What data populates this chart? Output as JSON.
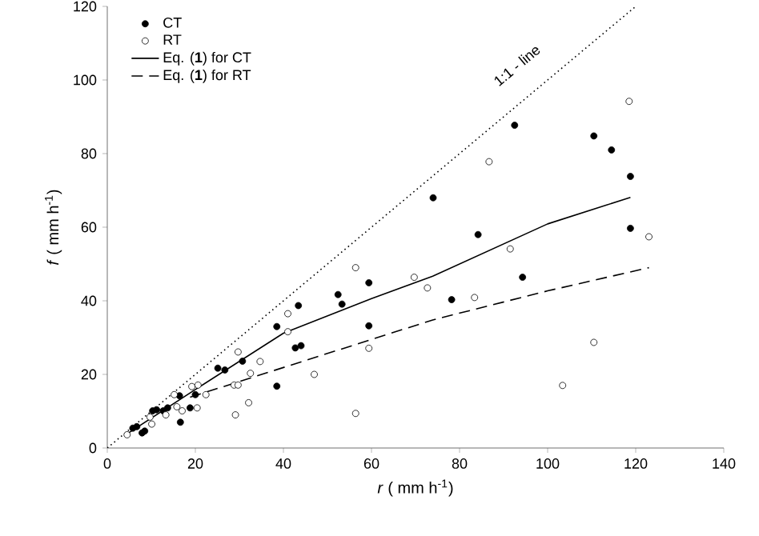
{
  "chart_data": {
    "type": "scatter",
    "xlabel": "*r* ( mm h$^{-1}$)",
    "ylabel": "*f* ( mm h$^{-1}$)",
    "xlim": [
      0,
      140
    ],
    "xticks": [
      0,
      20,
      40,
      60,
      80,
      100,
      120,
      140
    ],
    "ylim": [
      0,
      120
    ],
    "yticks": [
      0,
      20,
      40,
      60,
      80,
      100,
      120
    ],
    "grid": false,
    "legend": "top left",
    "annotations": [
      {
        "text": "1:1 - line",
        "x": 93,
        "y": 104
      }
    ],
    "series": [
      {
        "name": "CT",
        "type": "scatter",
        "marker": "circle",
        "color": "#000000",
        "x": [
          7.9,
          8.5,
          6.7,
          5.8,
          10.3,
          11.2,
          12.7,
          13.7,
          16.4,
          16.6,
          18.8,
          20,
          25.1,
          26.7,
          30.7,
          38.5,
          38.5,
          43.4,
          42.7,
          44,
          52.4,
          53.3,
          59.4,
          59.4,
          74,
          92.5,
          84.2,
          94.3,
          78.2,
          110.5,
          114.5,
          118.8,
          118.8
        ],
        "values": [
          4.1,
          4.6,
          5.8,
          5.4,
          10.1,
          10.4,
          10.1,
          10.9,
          14.2,
          7.0,
          10.9,
          14.5,
          21.7,
          21.2,
          23.6,
          33,
          16.8,
          38.7,
          27.2,
          27.8,
          41.7,
          39.1,
          44.9,
          33.2,
          68,
          87.7,
          58.0,
          46.4,
          40.3,
          84.8,
          81.0,
          73.8,
          59.7
        ]
      },
      {
        "name": "RT",
        "type": "scatter",
        "marker": "circle",
        "color": "#ffffff",
        "x": [
          4.5,
          9.7,
          10.1,
          13.3,
          15.2,
          15.8,
          17,
          19.2,
          20.6,
          20.4,
          22.4,
          28.8,
          29.7,
          29.1,
          29.7,
          32.5,
          32.1,
          34.7,
          41,
          41,
          47,
          56.4,
          56.4,
          59.4,
          69.7,
          72.7,
          83.4,
          86.7,
          91.5,
          103.4,
          110.5,
          118.5,
          123
        ],
        "values": [
          3.6,
          8.4,
          6.5,
          9.0,
          14.5,
          11.2,
          10.1,
          16.7,
          17.1,
          10.9,
          14.5,
          17.1,
          17.1,
          9.0,
          26.1,
          20.3,
          12.3,
          23.5,
          36.5,
          31.6,
          20,
          49,
          9.4,
          27.1,
          46.4,
          43.5,
          40.9,
          77.8,
          54.1,
          17.0,
          28.7,
          94.2,
          57.4
        ]
      },
      {
        "name": "Eq. (**1**) for CT",
        "type": "line",
        "marker": "none",
        "line_style": "solid",
        "color": "#000000",
        "x": [
          4.2,
          20,
          40,
          60,
          73.9,
          100,
          118.8
        ],
        "values": [
          3.6,
          15.9,
          31.2,
          40.6,
          46.7,
          60.9,
          68.1
        ]
      },
      {
        "name": "Eq. (**1**) for RT",
        "type": "line",
        "marker": "none",
        "line_style": "dashed",
        "color": "#000000",
        "x": [
          18.8,
          73.9,
          100,
          123
        ],
        "values": [
          13.8,
          34.8,
          42.7,
          49.0
        ]
      },
      {
        "type": "line",
        "marker": "none",
        "line_style": "dotted",
        "color": "#000000",
        "x": [
          0,
          120
        ],
        "values": [
          0,
          120
        ]
      }
    ]
  }
}
